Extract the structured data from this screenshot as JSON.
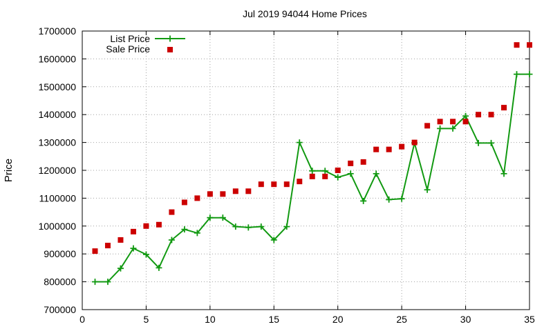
{
  "chart_data": {
    "type": "line",
    "title": "Jul 2019 94044 Home Prices",
    "xlabel": "",
    "ylabel": "Price",
    "xlim": [
      0,
      35
    ],
    "ylim": [
      700000,
      1700000
    ],
    "x_ticks": [
      0,
      5,
      10,
      15,
      20,
      25,
      30,
      35
    ],
    "y_ticks": [
      700000,
      800000,
      900000,
      1000000,
      1100000,
      1200000,
      1300000,
      1400000,
      1500000,
      1600000,
      1700000
    ],
    "grid": true,
    "legend_position": "top-left",
    "series": [
      {
        "name": "List Price",
        "style": "line-with-plus-markers",
        "color": "#119911",
        "x": [
          1,
          2,
          3,
          4,
          5,
          6,
          7,
          8,
          9,
          10,
          11,
          12,
          13,
          14,
          15,
          16,
          17,
          18,
          19,
          20,
          21,
          22,
          23,
          24,
          25,
          26,
          27,
          28,
          29,
          30,
          31,
          32,
          33,
          34,
          35
        ],
        "values": [
          800000,
          800000,
          848000,
          920000,
          898000,
          850000,
          950000,
          988000,
          975000,
          1030000,
          1030000,
          998000,
          995000,
          998000,
          950000,
          998000,
          1300000,
          1198000,
          1198000,
          1175000,
          1188000,
          1090000,
          1188000,
          1095000,
          1098000,
          1298000,
          1130000,
          1350000,
          1350000,
          1395000,
          1298000,
          1298000,
          1188000,
          1545000,
          1545000
        ]
      },
      {
        "name": "Sale Price",
        "style": "square-markers",
        "color": "#cc0000",
        "x": [
          1,
          2,
          3,
          4,
          5,
          6,
          7,
          8,
          9,
          10,
          11,
          12,
          13,
          14,
          15,
          16,
          17,
          18,
          19,
          20,
          21,
          22,
          23,
          24,
          25,
          26,
          27,
          28,
          29,
          30,
          31,
          32,
          33,
          34,
          35
        ],
        "values": [
          910000,
          930000,
          950000,
          980000,
          1000000,
          1005000,
          1050000,
          1085000,
          1100000,
          1115000,
          1115000,
          1125000,
          1125000,
          1150000,
          1150000,
          1150000,
          1160000,
          1178000,
          1178000,
          1200000,
          1225000,
          1230000,
          1275000,
          1275000,
          1285000,
          1300000,
          1360000,
          1375000,
          1375000,
          1375000,
          1400000,
          1400000,
          1425000,
          1650000,
          1650000
        ]
      }
    ]
  }
}
